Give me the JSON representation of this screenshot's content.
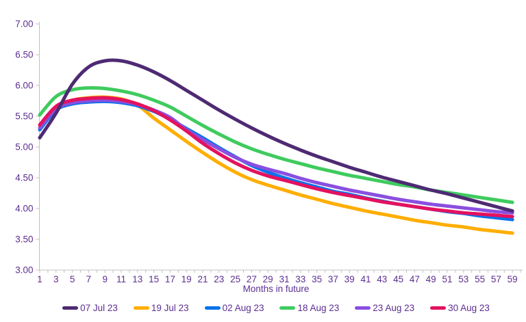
{
  "chart_data": {
    "type": "line",
    "title": "",
    "xlabel": "Months in future",
    "ylabel": "",
    "ylim": [
      3.0,
      7.0
    ],
    "y_tick_step": 0.5,
    "y_tick_labels": [
      "3.00",
      "3.50",
      "4.00",
      "4.50",
      "5.00",
      "5.50",
      "6.00",
      "6.50",
      "7.00"
    ],
    "x_tick_labels": [
      "1",
      "3",
      "5",
      "7",
      "9",
      "11",
      "13",
      "15",
      "17",
      "19",
      "21",
      "23",
      "25",
      "27",
      "29",
      "31",
      "33",
      "35",
      "37",
      "39",
      "41",
      "43",
      "45",
      "47",
      "49",
      "51",
      "53",
      "55",
      "57",
      "59"
    ],
    "x": [
      1,
      3,
      5,
      7,
      9,
      11,
      13,
      15,
      17,
      19,
      21,
      23,
      25,
      27,
      29,
      31,
      33,
      35,
      37,
      39,
      41,
      43,
      45,
      47,
      49,
      51,
      53,
      55,
      57,
      59
    ],
    "series": [
      {
        "name": "07 Jul 23",
        "color": "#4E2A73",
        "values": [
          5.15,
          5.55,
          6.02,
          6.3,
          6.4,
          6.4,
          6.33,
          6.22,
          6.08,
          5.92,
          5.76,
          5.6,
          5.45,
          5.31,
          5.18,
          5.06,
          4.95,
          4.85,
          4.76,
          4.67,
          4.59,
          4.51,
          4.44,
          4.37,
          4.3,
          4.24,
          4.17,
          4.1,
          4.03,
          3.96
        ]
      },
      {
        "name": "19 Jul 23",
        "color": "#FFAE00",
        "values": [
          5.32,
          5.65,
          5.76,
          5.8,
          5.81,
          5.78,
          5.68,
          5.47,
          5.28,
          5.09,
          4.91,
          4.74,
          4.59,
          4.47,
          4.38,
          4.3,
          4.22,
          4.15,
          4.08,
          4.02,
          3.96,
          3.91,
          3.86,
          3.81,
          3.77,
          3.73,
          3.7,
          3.66,
          3.63,
          3.6
        ]
      },
      {
        "name": "02 Aug 23",
        "color": "#0B72EB",
        "values": [
          5.28,
          5.6,
          5.7,
          5.73,
          5.74,
          5.72,
          5.67,
          5.58,
          5.45,
          5.3,
          5.15,
          4.99,
          4.84,
          4.7,
          4.59,
          4.5,
          4.42,
          4.35,
          4.28,
          4.23,
          4.17,
          4.12,
          4.07,
          4.03,
          3.99,
          3.95,
          3.92,
          3.88,
          3.85,
          3.82
        ]
      },
      {
        "name": "18 Aug 23",
        "color": "#3FCB5E",
        "values": [
          5.52,
          5.82,
          5.93,
          5.96,
          5.95,
          5.91,
          5.85,
          5.76,
          5.65,
          5.5,
          5.35,
          5.21,
          5.08,
          4.97,
          4.88,
          4.8,
          4.73,
          4.66,
          4.6,
          4.54,
          4.49,
          4.44,
          4.39,
          4.35,
          4.3,
          4.26,
          4.22,
          4.18,
          4.14,
          4.1
        ]
      },
      {
        "name": "23 Aug 23",
        "color": "#8A4FE0",
        "values": [
          5.31,
          5.62,
          5.72,
          5.75,
          5.76,
          5.74,
          5.69,
          5.6,
          5.48,
          5.28,
          5.12,
          4.97,
          4.83,
          4.72,
          4.64,
          4.57,
          4.49,
          4.42,
          4.36,
          4.3,
          4.25,
          4.2,
          4.15,
          4.11,
          4.07,
          4.04,
          4.01,
          3.98,
          3.95,
          3.93
        ]
      },
      {
        "name": "30 Aug 23",
        "color": "#E3125F",
        "values": [
          5.36,
          5.66,
          5.76,
          5.79,
          5.8,
          5.77,
          5.7,
          5.59,
          5.44,
          5.26,
          5.06,
          4.89,
          4.74,
          4.62,
          4.53,
          4.46,
          4.39,
          4.32,
          4.26,
          4.21,
          4.16,
          4.11,
          4.07,
          4.03,
          3.99,
          3.96,
          3.93,
          3.91,
          3.89,
          3.87
        ]
      }
    ],
    "draw_order": [
      "19 Jul 23",
      "02 Aug 23",
      "23 Aug 23",
      "30 Aug 23",
      "18 Aug 23",
      "07 Jul 23"
    ],
    "legend_position": "bottom",
    "grid": "off",
    "axis_color": "#C0C0C0",
    "text_color": "#5C2D91",
    "line_width": 5
  }
}
